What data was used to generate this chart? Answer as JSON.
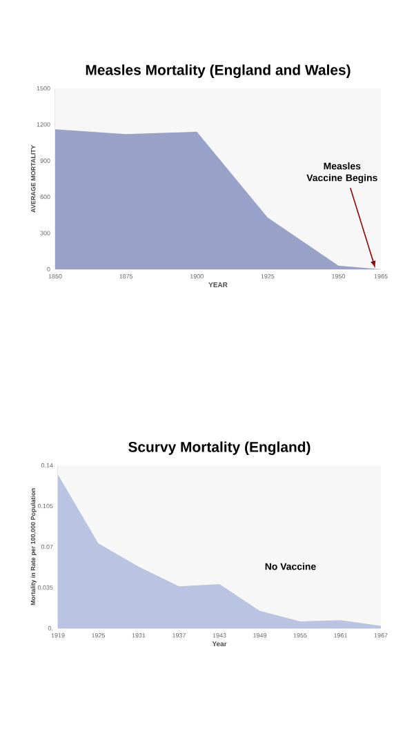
{
  "chart_data": [
    {
      "type": "area",
      "title": "Measles Mortality (England and Wales)",
      "xlabel": "YEAR",
      "ylabel": "AVERAGE MORTALITY",
      "x": [
        1850,
        1875,
        1900,
        1925,
        1950,
        1965
      ],
      "values": [
        1160,
        1120,
        1140,
        430,
        30,
        0
      ],
      "color": "#98a2c8",
      "xlim": [
        1850,
        1965
      ],
      "ylim": [
        0,
        1500
      ],
      "xticks": [
        1850,
        1875,
        1900,
        1925,
        1950,
        1965
      ],
      "yticks": [
        0,
        300,
        600,
        900,
        1200,
        1500
      ],
      "annotations": [
        {
          "text": "Measles Vaccine Begins",
          "x": 1963,
          "y": 10
        }
      ]
    },
    {
      "type": "area",
      "title": "Scurvy Mortality (England)",
      "xlabel": "Year",
      "ylabel": "Mortality in Rate per 100,000 Population",
      "x": [
        1919,
        1925,
        1931,
        1937,
        1943,
        1949,
        1955,
        1961,
        1967
      ],
      "values": [
        0.132,
        0.073,
        0.053,
        0.036,
        0.038,
        0.015,
        0.006,
        0.007,
        0.002
      ],
      "color": "#b9c4e2",
      "xlim": [
        1919,
        1967
      ],
      "ylim": [
        0,
        0.14
      ],
      "xticks": [
        1919,
        1925,
        1931,
        1937,
        1943,
        1949,
        1955,
        1961,
        1967
      ],
      "yticks": [
        {
          "value": 0,
          "label": "0."
        },
        0.035,
        0.07,
        0.105,
        0.14
      ],
      "annotations": [
        "No Vaccine"
      ]
    }
  ]
}
